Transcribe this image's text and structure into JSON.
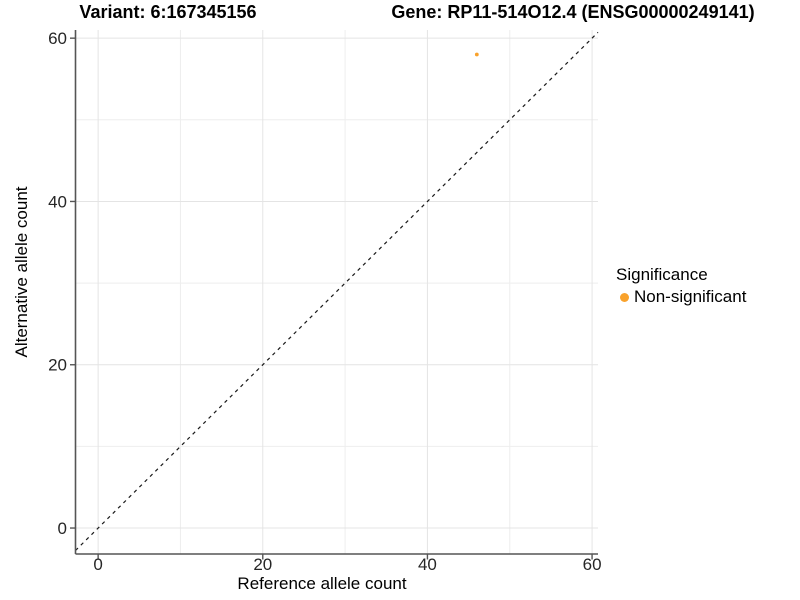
{
  "chart_data": {
    "type": "scatter",
    "title_variant": "Variant: 6:167345156",
    "title_gene": "Gene: RP11-514O12.4 (ENSG00000249141)",
    "xlabel": "Reference allele count",
    "ylabel": "Alternative allele count",
    "xlim": [
      -2.75,
      60.72
    ],
    "ylim": [
      -3.18,
      61.0
    ],
    "x_major_ticks": [
      0,
      20,
      40,
      60
    ],
    "x_minor_gridlines": [
      10,
      30,
      50
    ],
    "y_major_ticks": [
      0,
      20,
      40,
      60
    ],
    "y_minor_gridlines": [
      10,
      30,
      50
    ],
    "grid": "major+minor",
    "series": [
      {
        "name": "Non-significant",
        "color": "#F9A22C",
        "points": [
          [
            46,
            58
          ]
        ]
      }
    ],
    "reference_line": {
      "type": "identity y=x",
      "style": "dashed",
      "color": "#1A1A1A"
    },
    "legend": {
      "title": "Significance",
      "position": "right",
      "items": [
        {
          "label": "Non-significant",
          "color": "#F9A22C"
        }
      ]
    },
    "colors": {
      "background": "#FFFFFF",
      "grid_major": "#E4E4E4",
      "grid_minor": "#EEEEEE",
      "axis_line": "#555555",
      "tick_label": "#262626",
      "point": "#F9A22C"
    }
  }
}
